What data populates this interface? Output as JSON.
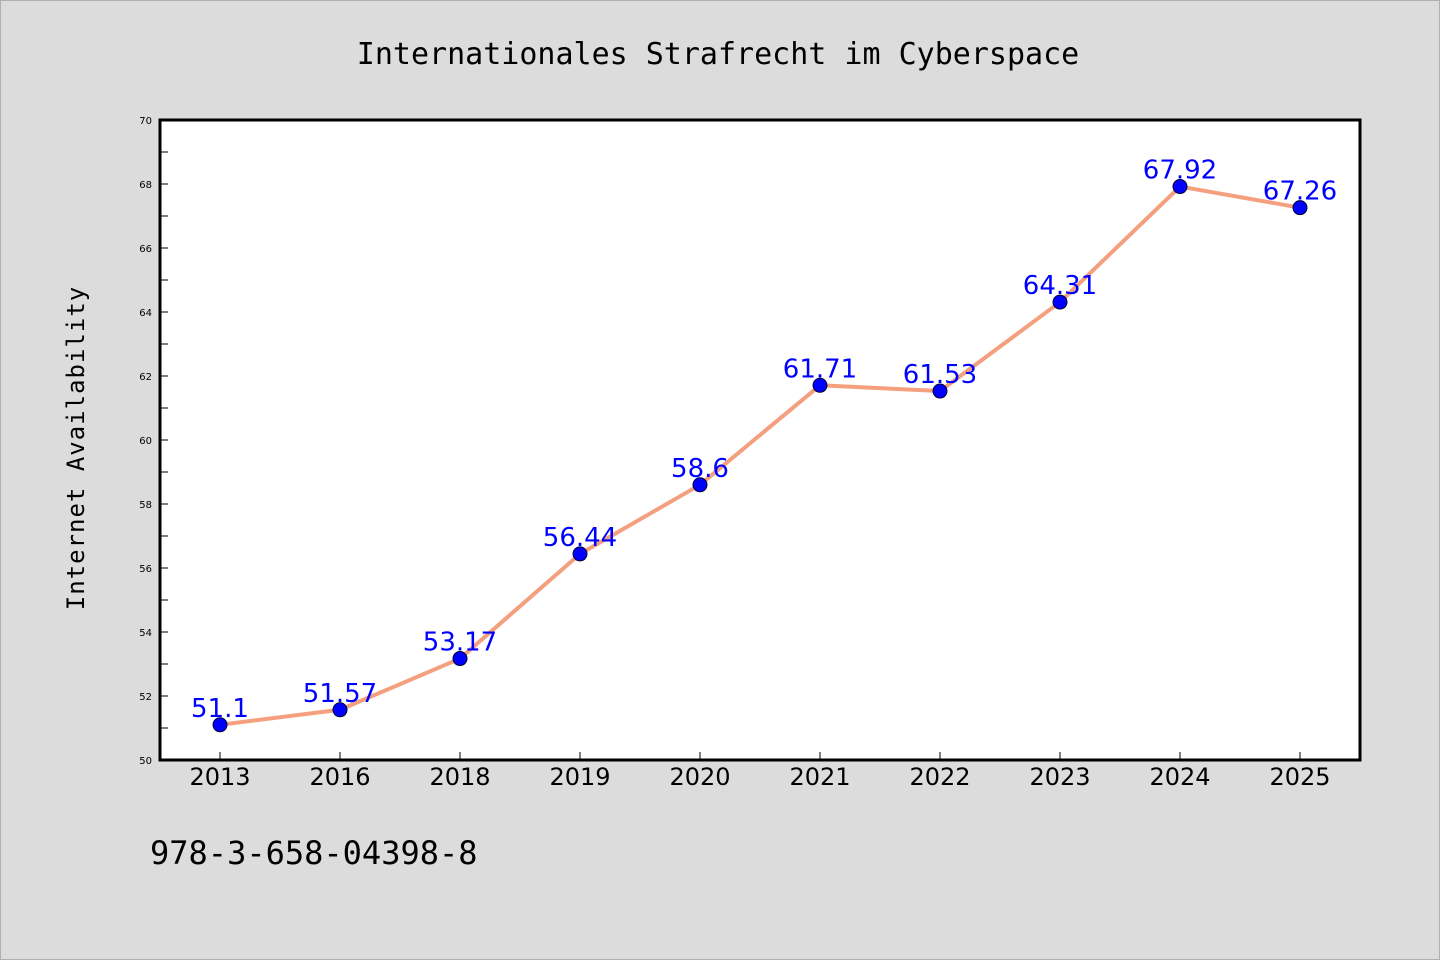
{
  "chart_data": {
    "type": "line",
    "title": "Internationales Strafrecht im Cyberspace",
    "xlabel": "",
    "ylabel": "Internet Availability",
    "categories": [
      "2013",
      "2016",
      "2018",
      "2019",
      "2020",
      "2021",
      "2022",
      "2023",
      "2024",
      "2025"
    ],
    "series": [
      {
        "values": [
          51.1,
          51.57,
          53.17,
          56.44,
          58.6,
          61.71,
          61.53,
          64.31,
          67.92,
          67.26
        ],
        "labels": [
          "51.1",
          "51.57",
          "53.17",
          "56.44",
          "58.6",
          "61.71",
          "61.53",
          "64.31",
          "67.92",
          "67.26"
        ]
      }
    ],
    "ylim": [
      50,
      70
    ],
    "yticks": [
      "50",
      "52",
      "54",
      "56",
      "58",
      "60",
      "62",
      "64",
      "66",
      "68",
      "70"
    ],
    "grid": false,
    "colors": {
      "line": "#f4a07f",
      "marker": "#0000ff",
      "label": "#0000ff"
    }
  },
  "footer": {
    "isbn": "978-3-658-04398-8"
  }
}
